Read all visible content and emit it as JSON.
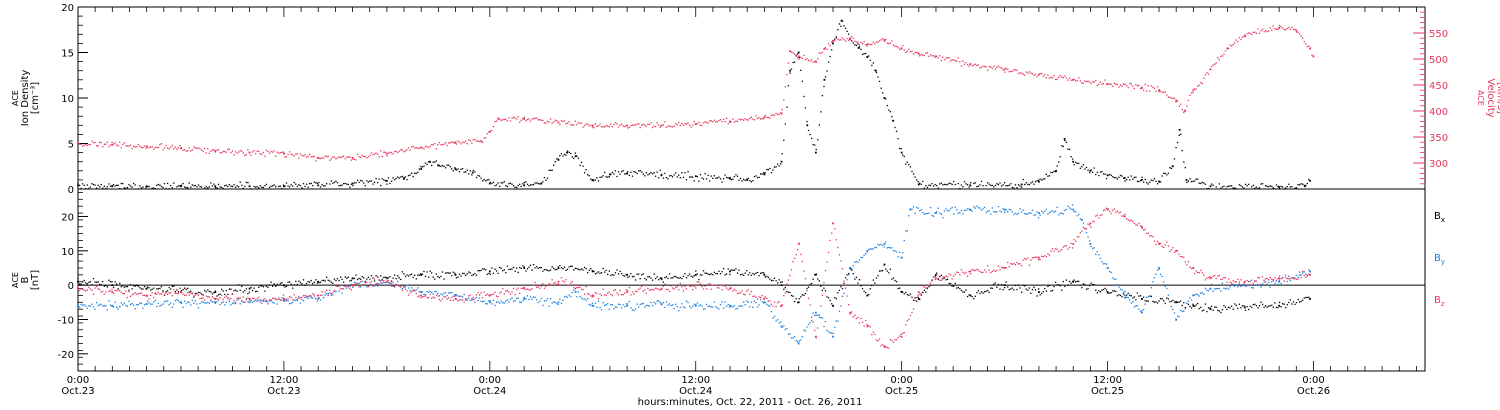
{
  "colors": {
    "black": "#000000",
    "pink": "#e8365d",
    "blue": "#1a7fe0"
  },
  "xaxis": {
    "title": "hours:minutes, Oct. 22, 2011 - Oct. 26, 2011",
    "ticks": [
      {
        "t": 0,
        "time": "0:00",
        "date": "Oct.23"
      },
      {
        "t": 12,
        "time": "12:00",
        "date": "Oct.23"
      },
      {
        "t": 24,
        "time": "0:00",
        "date": "Oct.24"
      },
      {
        "t": 36,
        "time": "12:00",
        "date": "Oct.24"
      },
      {
        "t": 48,
        "time": "0:00",
        "date": "Oct.25"
      },
      {
        "t": 60,
        "time": "12:00",
        "date": "Oct.25"
      },
      {
        "t": 72,
        "time": "0:00",
        "date": "Oct.26"
      }
    ]
  },
  "chart_data": [
    {
      "type": "scatter",
      "x_unit": "hours since Oct.23 0:00",
      "xlim": [
        0,
        78.5
      ],
      "left_axis": {
        "label_lines": [
          "ACE",
          "Ion Density",
          "[cm⁻³]"
        ],
        "ylim": [
          0,
          20
        ],
        "ticks": [
          0,
          5,
          10,
          15,
          20
        ]
      },
      "right_axis": {
        "label_lines": [
          "ACE",
          "Velocity",
          "[km/s]"
        ],
        "ylim": [
          250,
          600
        ],
        "ticks": [
          300,
          350,
          400,
          450,
          500,
          550
        ]
      },
      "series": [
        {
          "color": "black",
          "axis": "left",
          "points": [
            [
              0,
              0.4
            ],
            [
              2,
              0.3
            ],
            [
              4,
              0.3
            ],
            [
              6,
              0.3
            ],
            [
              8,
              0.3
            ],
            [
              10,
              0.3
            ],
            [
              12,
              0.3
            ],
            [
              14,
              0.4
            ],
            [
              16,
              0.6
            ],
            [
              18,
              0.9
            ],
            [
              19,
              1.2
            ],
            [
              20,
              2.2
            ],
            [
              20.5,
              3.0
            ],
            [
              21,
              2.6
            ],
            [
              22,
              2.2
            ],
            [
              23,
              1.8
            ],
            [
              24,
              0.6
            ],
            [
              26,
              0.4
            ],
            [
              27,
              0.6
            ],
            [
              28,
              3.2
            ],
            [
              28.5,
              4.0
            ],
            [
              29,
              3.6
            ],
            [
              30,
              1.0
            ],
            [
              31,
              1.6
            ],
            [
              32,
              1.7
            ],
            [
              34,
              1.5
            ],
            [
              36,
              1.4
            ],
            [
              38,
              1.2
            ],
            [
              39,
              1.0
            ],
            [
              40,
              1.6
            ],
            [
              41,
              3.0
            ],
            [
              41.5,
              13.0
            ],
            [
              42,
              15.0
            ],
            [
              42.5,
              7.0
            ],
            [
              43,
              4.0
            ],
            [
              43.5,
              12.0
            ],
            [
              44,
              16.0
            ],
            [
              44.5,
              18.5
            ],
            [
              45,
              16.5
            ],
            [
              45.5,
              15.5
            ],
            [
              46,
              14.5
            ],
            [
              46.5,
              13.0
            ],
            [
              47,
              10.0
            ],
            [
              47.5,
              7.5
            ],
            [
              48,
              4.0
            ],
            [
              49,
              0.5
            ],
            [
              52,
              0.4
            ],
            [
              55,
              0.5
            ],
            [
              56,
              0.8
            ],
            [
              57,
              2.0
            ],
            [
              57.5,
              5.5
            ],
            [
              58,
              3.0
            ],
            [
              59,
              2.0
            ],
            [
              60,
              1.5
            ],
            [
              61,
              1.2
            ],
            [
              62,
              1.0
            ],
            [
              63,
              0.8
            ],
            [
              63.8,
              2.5
            ],
            [
              64.2,
              6.5
            ],
            [
              64.6,
              1.0
            ],
            [
              66,
              0.3
            ],
            [
              70,
              0.2
            ],
            [
              71.5,
              0.3
            ],
            [
              71.8,
              0.9
            ]
          ]
        },
        {
          "color": "pink",
          "axis": "right",
          "points": [
            [
              0,
              338
            ],
            [
              2,
              335
            ],
            [
              4,
              332
            ],
            [
              6,
              328
            ],
            [
              8,
              323
            ],
            [
              10,
              320
            ],
            [
              12,
              318
            ],
            [
              14,
              310
            ],
            [
              16,
              310
            ],
            [
              18,
              318
            ],
            [
              20,
              330
            ],
            [
              22,
              340
            ],
            [
              23.5,
              342
            ],
            [
              24,
              360
            ],
            [
              24.5,
              385
            ],
            [
              26,
              385
            ],
            [
              28,
              378
            ],
            [
              30,
              372
            ],
            [
              32,
              372
            ],
            [
              34,
              372
            ],
            [
              36,
              375
            ],
            [
              38,
              380
            ],
            [
              40,
              388
            ],
            [
              41,
              395
            ],
            [
              41.5,
              515
            ],
            [
              42,
              505
            ],
            [
              43,
              495
            ],
            [
              43.5,
              520
            ],
            [
              44,
              535
            ],
            [
              45,
              540
            ],
            [
              46,
              528
            ],
            [
              47,
              535
            ],
            [
              48,
              520
            ],
            [
              49,
              510
            ],
            [
              50,
              505
            ],
            [
              52,
              490
            ],
            [
              54,
              480
            ],
            [
              56,
              470
            ],
            [
              58,
              460
            ],
            [
              60,
              452
            ],
            [
              62,
              445
            ],
            [
              63,
              440
            ],
            [
              64,
              420
            ],
            [
              64.5,
              400
            ],
            [
              65,
              440
            ],
            [
              66,
              480
            ],
            [
              67,
              520
            ],
            [
              68,
              545
            ],
            [
              70,
              560
            ],
            [
              71,
              555
            ],
            [
              71.8,
              520
            ],
            [
              72,
              505
            ]
          ]
        }
      ]
    },
    {
      "type": "scatter",
      "x_unit": "hours since Oct.23 0:00",
      "xlim": [
        0,
        78.5
      ],
      "left_axis": {
        "label_lines": [
          "ACE",
          "B",
          "[nT]"
        ],
        "ylim": [
          -25,
          28
        ],
        "ticks": [
          -20,
          -10,
          0,
          10,
          20
        ]
      },
      "legend": [
        {
          "text": "B",
          "sub": "x",
          "color": "black"
        },
        {
          "text": "B",
          "sub": "y",
          "color": "blue"
        },
        {
          "text": "B",
          "sub": "z",
          "color": "pink"
        }
      ],
      "series": [
        {
          "name": "Bx",
          "color": "black",
          "points": [
            [
              0,
              1
            ],
            [
              2,
              0
            ],
            [
              4,
              -1
            ],
            [
              6,
              -2
            ],
            [
              8,
              -2
            ],
            [
              10,
              -1
            ],
            [
              12,
              0
            ],
            [
              14,
              1
            ],
            [
              16,
              2
            ],
            [
              18,
              2
            ],
            [
              20,
              3
            ],
            [
              22,
              3
            ],
            [
              24,
              4
            ],
            [
              26,
              5
            ],
            [
              28,
              5
            ],
            [
              30,
              4
            ],
            [
              32,
              3
            ],
            [
              34,
              2
            ],
            [
              36,
              3
            ],
            [
              38,
              4
            ],
            [
              40,
              3
            ],
            [
              41,
              0
            ],
            [
              42,
              -5
            ],
            [
              43,
              3
            ],
            [
              44,
              -6
            ],
            [
              45,
              5
            ],
            [
              46,
              -3
            ],
            [
              47,
              6
            ],
            [
              48,
              -2
            ],
            [
              49,
              -4
            ],
            [
              50,
              3
            ],
            [
              52,
              -3
            ],
            [
              54,
              0
            ],
            [
              56,
              -2
            ],
            [
              58,
              1
            ],
            [
              60,
              -2
            ],
            [
              62,
              -4
            ],
            [
              64,
              -5
            ],
            [
              65,
              -6
            ],
            [
              66,
              -7
            ],
            [
              68,
              -6.5
            ],
            [
              70,
              -6
            ],
            [
              71.8,
              -4
            ]
          ]
        },
        {
          "name": "By",
          "color": "blue",
          "points": [
            [
              0,
              -6
            ],
            [
              2,
              -6
            ],
            [
              4,
              -5.5
            ],
            [
              6,
              -5
            ],
            [
              8,
              -5
            ],
            [
              10,
              -5
            ],
            [
              12,
              -4.5
            ],
            [
              14,
              -4
            ],
            [
              16,
              0
            ],
            [
              18,
              1
            ],
            [
              20,
              -2
            ],
            [
              22,
              -3
            ],
            [
              24,
              -5
            ],
            [
              26,
              -4
            ],
            [
              28,
              -5
            ],
            [
              29,
              -2
            ],
            [
              30,
              -6
            ],
            [
              32,
              -6
            ],
            [
              34,
              -5.5
            ],
            [
              36,
              -6
            ],
            [
              38,
              -6
            ],
            [
              40,
              -5
            ],
            [
              41,
              -12
            ],
            [
              42,
              -17
            ],
            [
              43,
              -8
            ],
            [
              44,
              -15
            ],
            [
              45,
              5
            ],
            [
              46,
              10
            ],
            [
              47,
              12
            ],
            [
              48,
              8
            ],
            [
              48.5,
              22
            ],
            [
              50,
              21
            ],
            [
              52,
              22
            ],
            [
              54,
              22
            ],
            [
              56,
              21
            ],
            [
              58,
              22
            ],
            [
              58.5,
              19
            ],
            [
              59,
              12
            ],
            [
              60,
              5
            ],
            [
              61,
              -3
            ],
            [
              62,
              -8
            ],
            [
              63,
              5
            ],
            [
              64,
              -10
            ],
            [
              65,
              -3
            ],
            [
              66,
              -1
            ],
            [
              68,
              0
            ],
            [
              70,
              1
            ],
            [
              71.8,
              4
            ]
          ]
        },
        {
          "name": "Bz",
          "color": "pink",
          "points": [
            [
              0,
              -1
            ],
            [
              2,
              -2
            ],
            [
              4,
              -3
            ],
            [
              6,
              -2
            ],
            [
              8,
              -4
            ],
            [
              10,
              -4
            ],
            [
              12,
              -4
            ],
            [
              14,
              -3
            ],
            [
              16,
              0
            ],
            [
              18,
              1
            ],
            [
              20,
              -3
            ],
            [
              22,
              -4
            ],
            [
              24,
              -3
            ],
            [
              26,
              -1
            ],
            [
              28,
              1
            ],
            [
              29,
              0
            ],
            [
              30,
              -3
            ],
            [
              32,
              -2
            ],
            [
              34,
              -1
            ],
            [
              36,
              0
            ],
            [
              38,
              -1
            ],
            [
              40,
              -4
            ],
            [
              41,
              -6
            ],
            [
              42,
              12
            ],
            [
              43,
              -15
            ],
            [
              44,
              18
            ],
            [
              45,
              -8
            ],
            [
              46,
              -12
            ],
            [
              47,
              -18
            ],
            [
              48,
              -15
            ],
            [
              49,
              -2
            ],
            [
              50,
              2
            ],
            [
              52,
              4
            ],
            [
              54,
              5
            ],
            [
              56,
              8
            ],
            [
              58,
              12
            ],
            [
              59,
              18
            ],
            [
              60,
              22
            ],
            [
              61,
              20
            ],
            [
              62,
              17
            ],
            [
              63,
              12
            ],
            [
              64,
              10
            ],
            [
              65,
              5
            ],
            [
              66,
              2
            ],
            [
              68,
              1
            ],
            [
              70,
              2
            ],
            [
              71.8,
              3
            ]
          ]
        }
      ]
    }
  ]
}
